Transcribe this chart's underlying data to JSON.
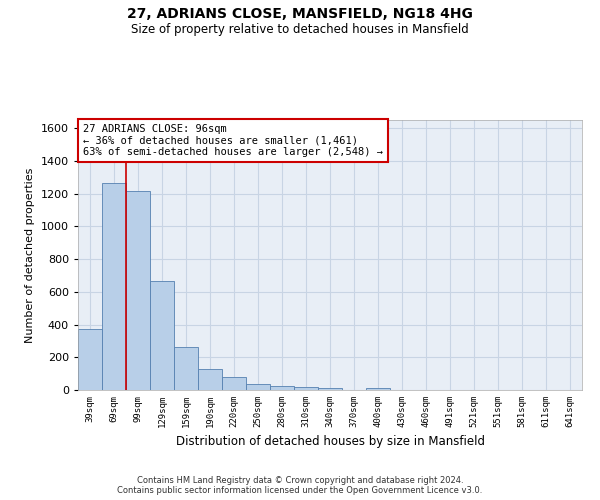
{
  "title_line1": "27, ADRIANS CLOSE, MANSFIELD, NG18 4HG",
  "title_line2": "Size of property relative to detached houses in Mansfield",
  "xlabel": "Distribution of detached houses by size in Mansfield",
  "ylabel": "Number of detached properties",
  "categories": [
    "39sqm",
    "69sqm",
    "99sqm",
    "129sqm",
    "159sqm",
    "190sqm",
    "220sqm",
    "250sqm",
    "280sqm",
    "310sqm",
    "340sqm",
    "370sqm",
    "400sqm",
    "430sqm",
    "460sqm",
    "491sqm",
    "521sqm",
    "551sqm",
    "581sqm",
    "611sqm",
    "641sqm"
  ],
  "values": [
    370,
    1265,
    1215,
    665,
    265,
    128,
    78,
    35,
    25,
    18,
    15,
    0,
    15,
    0,
    0,
    0,
    0,
    0,
    0,
    0,
    0
  ],
  "bar_color": "#b8cfe8",
  "bar_edge_color": "#5580b0",
  "grid_color": "#c8d4e4",
  "background_color": "#e8eef6",
  "vline_color": "#cc0000",
  "vline_x_idx": 2,
  "annotation_text": "27 ADRIANS CLOSE: 96sqm\n← 36% of detached houses are smaller (1,461)\n63% of semi-detached houses are larger (2,548) →",
  "annotation_box_color": "#cc0000",
  "footer_text": "Contains HM Land Registry data © Crown copyright and database right 2024.\nContains public sector information licensed under the Open Government Licence v3.0.",
  "ylim": [
    0,
    1650
  ],
  "yticks": [
    0,
    200,
    400,
    600,
    800,
    1000,
    1200,
    1400,
    1600
  ]
}
